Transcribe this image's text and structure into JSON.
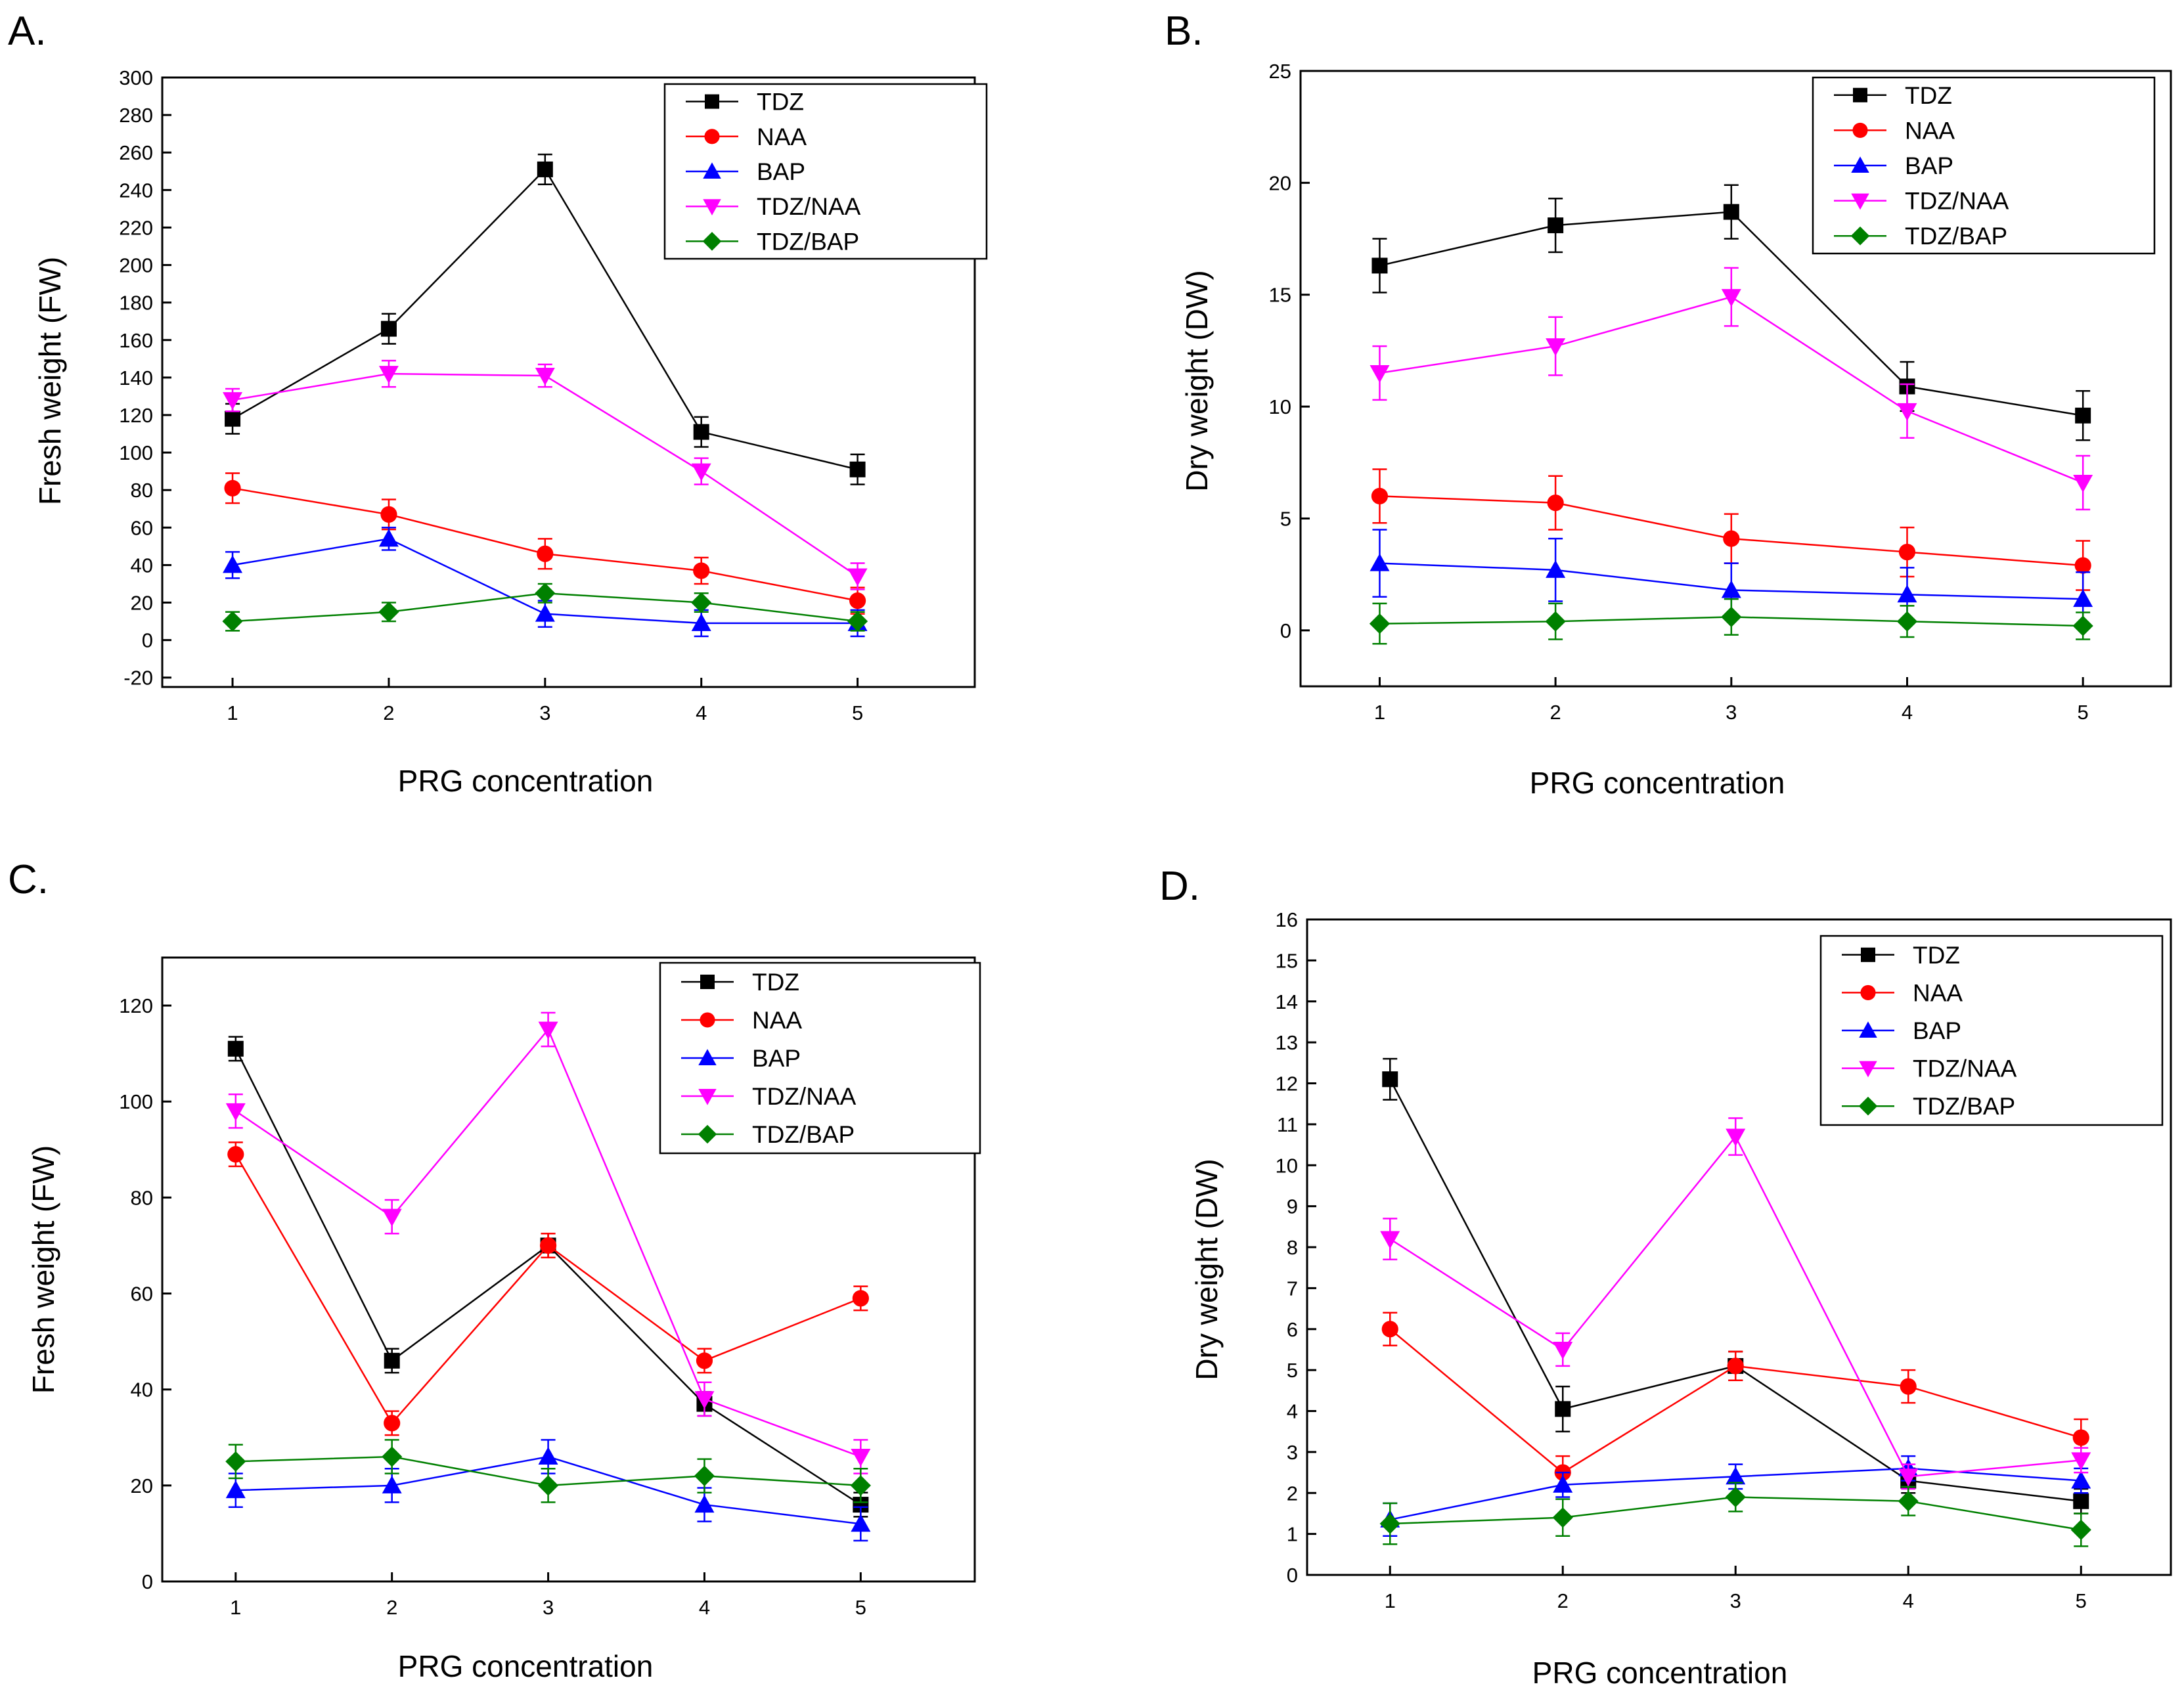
{
  "figure": {
    "title": ""
  },
  "colors": {
    "TDZ": "#000000",
    "NAA": "#ff0000",
    "BAP": "#0000ff",
    "TDZ/NAA": "#ff00ff",
    "TDZ/BAP": "#008000"
  },
  "markers": {
    "TDZ": "square",
    "NAA": "circle",
    "BAP": "triangle-up",
    "TDZ/NAA": "triangle-down",
    "TDZ/BAP": "diamond"
  },
  "chart_data": [
    {
      "panel_label": "A.",
      "type": "line",
      "title": "",
      "xlabel": "PRG concentration",
      "ylabel": "Fresh weight (FW)",
      "x": [
        1,
        2,
        3,
        4,
        5
      ],
      "xticks": [
        "1",
        "2",
        "3",
        "4",
        "5"
      ],
      "xlim": [
        0.55,
        5.75
      ],
      "ylim": [
        -25,
        300
      ],
      "yticks": [
        -20,
        0,
        20,
        40,
        60,
        80,
        100,
        120,
        140,
        160,
        180,
        200,
        220,
        240,
        260,
        280,
        300
      ],
      "ytick_labels": [
        "-20",
        "0",
        "20",
        "40",
        "60",
        "80",
        "100",
        "120",
        "140",
        "160",
        "180",
        "200",
        "220",
        "240",
        "260",
        "280",
        "300"
      ],
      "legend_position": "top-right",
      "series": [
        {
          "name": "TDZ",
          "values": [
            118,
            166,
            251,
            111,
            91
          ],
          "errors": [
            8,
            8,
            8,
            8,
            8
          ]
        },
        {
          "name": "NAA",
          "values": [
            81,
            67,
            46,
            37,
            21
          ],
          "errors": [
            8,
            8,
            8,
            7,
            7
          ]
        },
        {
          "name": "BAP",
          "values": [
            40,
            54,
            14,
            9,
            9
          ],
          "errors": [
            7,
            6,
            7,
            7,
            7
          ]
        },
        {
          "name": "TDZ/NAA",
          "values": [
            128,
            142,
            141,
            90,
            34
          ],
          "errors": [
            6,
            7,
            6,
            7,
            7
          ]
        },
        {
          "name": "TDZ/BAP",
          "values": [
            10,
            15,
            25,
            20,
            10
          ],
          "errors": [
            5,
            5,
            5,
            5,
            5
          ]
        }
      ]
    },
    {
      "panel_label": "B.",
      "type": "line",
      "title": "",
      "xlabel": "PRG concentration",
      "ylabel": "Dry weight (DW)",
      "x": [
        1,
        2,
        3,
        4,
        5
      ],
      "xticks": [
        "1",
        "2",
        "3",
        "4",
        "5"
      ],
      "xlim": [
        0.55,
        5.5
      ],
      "ylim": [
        -2.5,
        25
      ],
      "yticks": [
        0,
        5,
        10,
        15,
        20,
        25
      ],
      "ytick_labels": [
        "0",
        "5",
        "10",
        "15",
        "20",
        "25"
      ],
      "legend_position": "top-right",
      "series": [
        {
          "name": "TDZ",
          "values": [
            16.3,
            18.1,
            18.7,
            10.9,
            9.6
          ],
          "errors": [
            1.2,
            1.2,
            1.2,
            1.1,
            1.1
          ]
        },
        {
          "name": "NAA",
          "values": [
            6.0,
            5.7,
            4.1,
            3.5,
            2.9
          ],
          "errors": [
            1.2,
            1.2,
            1.1,
            1.1,
            1.1
          ]
        },
        {
          "name": "BAP",
          "values": [
            3.0,
            2.7,
            1.8,
            1.6,
            1.4
          ],
          "errors": [
            1.5,
            1.4,
            1.2,
            1.2,
            1.2
          ]
        },
        {
          "name": "TDZ/NAA",
          "values": [
            11.5,
            12.7,
            14.9,
            9.8,
            6.6
          ],
          "errors": [
            1.2,
            1.3,
            1.3,
            1.2,
            1.2
          ]
        },
        {
          "name": "TDZ/BAP",
          "values": [
            0.3,
            0.4,
            0.6,
            0.4,
            0.2
          ],
          "errors": [
            0.9,
            0.8,
            0.8,
            0.7,
            0.6
          ]
        }
      ]
    },
    {
      "panel_label": "C.",
      "type": "line",
      "title": "",
      "xlabel": "PRG concentration",
      "ylabel": "Fresh weight (FW)",
      "x": [
        1,
        2,
        3,
        4,
        5
      ],
      "xticks": [
        "1",
        "2",
        "3",
        "4",
        "5"
      ],
      "xlim": [
        0.53,
        5.73
      ],
      "ylim": [
        0,
        130
      ],
      "yticks": [
        0,
        20,
        40,
        60,
        80,
        100,
        120
      ],
      "ytick_labels": [
        "0",
        "20",
        "40",
        "60",
        "80",
        "100",
        "120"
      ],
      "legend_position": "top-right",
      "series": [
        {
          "name": "TDZ",
          "values": [
            111,
            46,
            70,
            37,
            16
          ],
          "errors": [
            2.5,
            2.5,
            2.5,
            2.5,
            2.5
          ]
        },
        {
          "name": "NAA",
          "values": [
            89,
            33,
            70,
            46,
            59
          ],
          "errors": [
            2.5,
            2.5,
            2.5,
            2.5,
            2.5
          ]
        },
        {
          "name": "BAP",
          "values": [
            19,
            20,
            26,
            16,
            12
          ],
          "errors": [
            3.5,
            3.5,
            3.5,
            3.5,
            3.5
          ]
        },
        {
          "name": "TDZ/NAA",
          "values": [
            98,
            76,
            115,
            38,
            26
          ],
          "errors": [
            3.5,
            3.5,
            3.5,
            3.5,
            3.5
          ]
        },
        {
          "name": "TDZ/BAP",
          "values": [
            25,
            26,
            20,
            22,
            20
          ],
          "errors": [
            3.5,
            3.5,
            3.5,
            3.5,
            3.5
          ]
        }
      ]
    },
    {
      "panel_label": "D.",
      "type": "line",
      "title": "",
      "xlabel": "PRG concentration",
      "ylabel": "Dry weight (DW)",
      "x": [
        1,
        2,
        3,
        4,
        5
      ],
      "xticks": [
        "1",
        "2",
        "3",
        "4",
        "5"
      ],
      "xlim": [
        0.52,
        5.52
      ],
      "ylim": [
        0,
        16
      ],
      "yticks": [
        0,
        1,
        2,
        3,
        4,
        5,
        6,
        7,
        8,
        9,
        10,
        11,
        12,
        13,
        14,
        15,
        16
      ],
      "ytick_labels": [
        "0",
        "1",
        "2",
        "3",
        "4",
        "5",
        "6",
        "7",
        "8",
        "9",
        "10",
        "11",
        "12",
        "13",
        "14",
        "15",
        "16"
      ],
      "legend_position": "top-right",
      "series": [
        {
          "name": "TDZ",
          "values": [
            12.1,
            4.05,
            5.1,
            2.3,
            1.8
          ],
          "errors": [
            0.5,
            0.55,
            0.35,
            0.3,
            0.3
          ]
        },
        {
          "name": "NAA",
          "values": [
            6.0,
            2.5,
            5.1,
            4.6,
            3.35
          ],
          "errors": [
            0.4,
            0.4,
            0.35,
            0.4,
            0.45
          ]
        },
        {
          "name": "BAP",
          "values": [
            1.35,
            2.2,
            2.4,
            2.6,
            2.3
          ],
          "errors": [
            0.4,
            0.3,
            0.3,
            0.3,
            0.3
          ]
        },
        {
          "name": "TDZ/NAA",
          "values": [
            8.2,
            5.5,
            10.7,
            2.4,
            2.8
          ],
          "errors": [
            0.5,
            0.4,
            0.45,
            0.3,
            0.3
          ]
        },
        {
          "name": "TDZ/BAP",
          "values": [
            1.25,
            1.4,
            1.9,
            1.8,
            1.1
          ],
          "errors": [
            0.5,
            0.45,
            0.35,
            0.35,
            0.4
          ]
        }
      ]
    }
  ]
}
